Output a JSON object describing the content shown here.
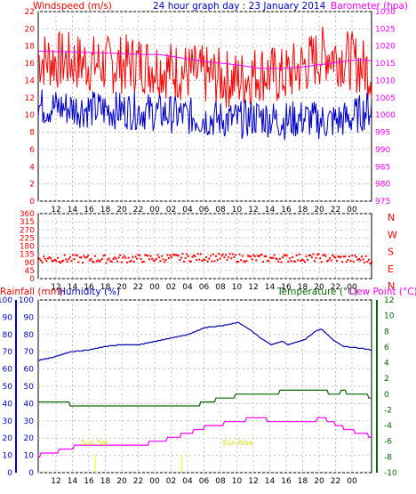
{
  "texts": {
    "windspeed_label": "Windspeed (m/s)",
    "title": "24 hour graph day : 23 January 2014",
    "barometer_label": "Barometer (hpa)",
    "rainfall_label": "Rainfall (mm)",
    "humidity_label": "Humidity (%)",
    "temperature_label": "Temperature (°C)",
    "dewpoint_label": "Dew Point (°C)",
    "sunset_label": "Sun Set",
    "sunrise_label": "Sun Rise"
  },
  "colors": {
    "wind_gust": "#ff0000",
    "wind_avg": "#0000cc",
    "barometer": "#ff00ff",
    "wind_dir": "#ff0000",
    "rainfall": "#ff0000",
    "humidity": "#0000aa",
    "temperature": "#006600",
    "dew_point": "#ff00ff",
    "sun_marker": "#ffff00",
    "grid": "#c0c0c0"
  },
  "x_tick_labels": [
    "12",
    "14",
    "16",
    "18",
    "20",
    "22",
    "00",
    "02",
    "04",
    "06",
    "08",
    "10",
    "12",
    "14",
    "16",
    "18",
    "20",
    "22",
    "00"
  ],
  "chart_data": [
    {
      "type": "line",
      "panel": "wind_barometer",
      "yaxis_left": {
        "label": "Windspeed (m/s)",
        "ticks": [
          0,
          2,
          4,
          6,
          8,
          10,
          12,
          14,
          16,
          18,
          20,
          22
        ],
        "ylim": [
          0,
          22
        ]
      },
      "yaxis_right": {
        "label": "Barometer (hpa)",
        "ticks": [
          975,
          980,
          985,
          990,
          995,
          1000,
          1005,
          1010,
          1015,
          1020,
          1025,
          1030
        ],
        "ylim": [
          975,
          1030
        ]
      },
      "x_ticks": [
        "12",
        "14",
        "16",
        "18",
        "20",
        "22",
        "00",
        "02",
        "04",
        "06",
        "08",
        "10",
        "12",
        "14",
        "16",
        "18",
        "20",
        "22",
        "00"
      ],
      "series": [
        {
          "axis": "left",
          "points": [
            [
              0,
              16.5
            ],
            [
              6,
              16.2
            ],
            [
              12,
              15.8
            ],
            [
              18,
              16
            ],
            [
              24,
              15.2
            ],
            [
              30,
              14.6
            ],
            [
              36,
              14
            ],
            [
              40,
              15
            ],
            [
              44,
              14.4
            ],
            [
              48,
              15.8
            ],
            [
              52,
              17.2
            ],
            [
              56,
              16.4
            ],
            [
              60,
              15
            ]
          ]
        },
        {
          "axis": "left",
          "points": [
            [
              0,
              11
            ],
            [
              6,
              10.8
            ],
            [
              12,
              10.6
            ],
            [
              18,
              10.5
            ],
            [
              24,
              10.1
            ],
            [
              30,
              9.6
            ],
            [
              36,
              9.4
            ],
            [
              40,
              9.8
            ],
            [
              44,
              9.3
            ],
            [
              48,
              9.6
            ],
            [
              52,
              9.2
            ],
            [
              56,
              9.6
            ],
            [
              60,
              10.8
            ]
          ]
        },
        {
          "axis": "right",
          "points": [
            [
              0,
              1018.5
            ],
            [
              6,
              1018.3
            ],
            [
              12,
              1018
            ],
            [
              18,
              1017.6
            ],
            [
              22,
              1017.5
            ],
            [
              26,
              1016.5
            ],
            [
              30,
              1015.5
            ],
            [
              36,
              1014.5
            ],
            [
              40,
              1013.5
            ],
            [
              44,
              1013.5
            ],
            [
              48,
              1014
            ],
            [
              50,
              1014.5
            ],
            [
              52,
              1014.8
            ],
            [
              54,
              1015.3
            ],
            [
              56,
              1015.8
            ],
            [
              58,
              1016
            ],
            [
              60,
              1015.7
            ]
          ]
        }
      ]
    },
    {
      "type": "scatter",
      "panel": "wind_direction",
      "yaxis_left": {
        "ticks": [
          0,
          45,
          90,
          135,
          180,
          225,
          270,
          315,
          360
        ],
        "ylim": [
          0,
          360
        ]
      },
      "yaxis_right_labels": [
        "N",
        "W",
        "S",
        "E",
        "N"
      ],
      "x_ticks": [
        "12",
        "14",
        "16",
        "18",
        "20",
        "22",
        "00",
        "02",
        "04",
        "06",
        "08",
        "10",
        "12",
        "14",
        "16",
        "18",
        "20",
        "22",
        "00"
      ],
      "series": [
        {
          "points": [
            [
              0,
              110
            ],
            [
              10,
              108
            ],
            [
              20,
              112
            ],
            [
              30,
              118
            ],
            [
              40,
              112
            ],
            [
              50,
              115
            ],
            [
              60,
              105
            ]
          ]
        }
      ]
    },
    {
      "type": "line",
      "panel": "rain_humidity_temp",
      "yaxis_rainfall": {
        "label": "Rainfall (mm)",
        "ticks": [
          0,
          10,
          20,
          30,
          40,
          50,
          60,
          70,
          80,
          90,
          100
        ],
        "ylim": [
          0,
          100
        ]
      },
      "yaxis_humidity": {
        "label": "Humidity (%)",
        "ticks": [
          0,
          10,
          20,
          30,
          40,
          50,
          60,
          70,
          80,
          90,
          100
        ],
        "ylim": [
          0,
          100
        ]
      },
      "yaxis_temperature": {
        "label": "Temperature (°C)",
        "ticks": [
          -10,
          -8,
          -6,
          -4,
          -2,
          0,
          2,
          4,
          6,
          8,
          10,
          12
        ],
        "ylim": [
          -10,
          12
        ]
      },
      "x_ticks": [
        "12",
        "14",
        "16",
        "18",
        "20",
        "22",
        "00",
        "02",
        "04",
        "06",
        "08",
        "10",
        "12",
        "14",
        "16",
        "18",
        "20",
        "22",
        "00"
      ],
      "sun_markers": [
        {
          "label": "Sun Set",
          "x": 10.3
        },
        {
          "label": "Sun Rise",
          "x": 25.8
        }
      ],
      "series": [
        {
          "axis": "humidity",
          "points": [
            [
              0,
              65
            ],
            [
              3,
              67
            ],
            [
              6,
              70
            ],
            [
              9,
              71
            ],
            [
              12,
              73
            ],
            [
              15,
              74
            ],
            [
              18,
              74
            ],
            [
              21,
              76
            ],
            [
              24,
              78
            ],
            [
              27,
              80
            ],
            [
              30,
              84
            ],
            [
              33,
              85
            ],
            [
              36,
              87
            ],
            [
              38,
              83
            ],
            [
              40,
              78
            ],
            [
              42,
              74
            ],
            [
              44,
              76
            ],
            [
              45,
              74
            ],
            [
              48,
              77
            ],
            [
              50,
              82
            ],
            [
              51,
              83
            ],
            [
              53,
              77
            ],
            [
              55,
              73
            ],
            [
              58,
              72
            ],
            [
              60,
              71
            ]
          ]
        },
        {
          "axis": "temperature",
          "points": [
            [
              0,
              -1.2
            ],
            [
              3,
              -1
            ],
            [
              6,
              -1.3
            ],
            [
              9,
              -1.4
            ],
            [
              12,
              -1.5
            ],
            [
              15,
              -1.5
            ],
            [
              18,
              -1.5
            ],
            [
              21,
              -1.4
            ],
            [
              24,
              -1.4
            ],
            [
              27,
              -1.4
            ],
            [
              30,
              -1.2
            ],
            [
              33,
              -0.5
            ],
            [
              36,
              -0.2
            ],
            [
              39,
              0
            ],
            [
              42,
              0.2
            ],
            [
              45,
              0.3
            ],
            [
              48,
              0.4
            ],
            [
              51,
              0.4
            ],
            [
              53,
              0.1
            ],
            [
              55,
              0.3
            ],
            [
              57,
              -0.1
            ],
            [
              60,
              -0.3
            ]
          ]
        },
        {
          "axis": "temperature",
          "points": [
            [
              0,
              -7.8
            ],
            [
              3,
              -7.4
            ],
            [
              6,
              -6.8
            ],
            [
              9,
              -6.5
            ],
            [
              12,
              -6.6
            ],
            [
              15,
              -6.5
            ],
            [
              18,
              -6.5
            ],
            [
              21,
              -6.1
            ],
            [
              24,
              -5.6
            ],
            [
              27,
              -5.0
            ],
            [
              30,
              -4.2
            ],
            [
              33,
              -3.8
            ],
            [
              36,
              -3.4
            ],
            [
              38,
              -3.2
            ],
            [
              40,
              -3.2
            ],
            [
              42,
              -3.3
            ],
            [
              45,
              -3.6
            ],
            [
              48,
              -3.6
            ],
            [
              50,
              -3.3
            ],
            [
              51,
              -3.0
            ],
            [
              53,
              -3.6
            ],
            [
              55,
              -4.3
            ],
            [
              58,
              -5.0
            ],
            [
              60,
              -5.4
            ]
          ]
        }
      ]
    }
  ]
}
